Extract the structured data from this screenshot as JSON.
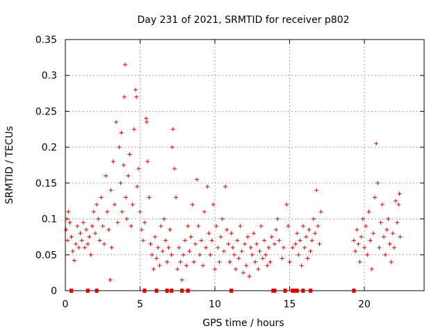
{
  "chart_data": {
    "type": "scatter",
    "title": "Day 231 of 2021, SRMTID for receiver p802",
    "xlabel": "GPS time / hours",
    "ylabel": "SRMTID / TECUs",
    "xlim": [
      0,
      24
    ],
    "ylim": [
      0,
      0.35
    ],
    "grid": true,
    "marker": "+",
    "color": "#e00000",
    "x_ticks": [
      {
        "v": 0,
        "label": "0"
      },
      {
        "v": 5,
        "label": "5"
      },
      {
        "v": 10,
        "label": "10"
      },
      {
        "v": 15,
        "label": "15"
      },
      {
        "v": 20,
        "label": "20"
      }
    ],
    "y_ticks": [
      {
        "v": 0,
        "label": "0"
      },
      {
        "v": 0.05,
        "label": "0.05"
      },
      {
        "v": 0.1,
        "label": "0.1"
      },
      {
        "v": 0.15,
        "label": "0.15"
      },
      {
        "v": 0.2,
        "label": "0.2"
      },
      {
        "v": 0.25,
        "label": "0.25"
      },
      {
        "v": 0.3,
        "label": "0.3"
      },
      {
        "v": 0.35,
        "label": "0.35"
      }
    ],
    "series": [
      {
        "name": "SRMTID",
        "points": [
          [
            0.05,
            0.085
          ],
          [
            0.1,
            0.1
          ],
          [
            0.15,
            0.07
          ],
          [
            0.2,
            0.11
          ],
          [
            0.3,
            0.095
          ],
          [
            0.4,
            0.075
          ],
          [
            0.5,
            0.055
          ],
          [
            0.6,
            0.042
          ],
          [
            0.7,
            0.065
          ],
          [
            0.8,
            0.09
          ],
          [
            0.9,
            0.06
          ],
          [
            1.0,
            0.08
          ],
          [
            1.1,
            0.07
          ],
          [
            1.2,
            0.095
          ],
          [
            1.3,
            0.06
          ],
          [
            1.4,
            0.085
          ],
          [
            1.5,
            0.065
          ],
          [
            1.6,
            0.075
          ],
          [
            1.7,
            0.05
          ],
          [
            1.8,
            0.09
          ],
          [
            1.9,
            0.11
          ],
          [
            2.0,
            0.08
          ],
          [
            2.1,
            0.12
          ],
          [
            2.2,
            0.1
          ],
          [
            2.3,
            0.07
          ],
          [
            2.4,
            0.13
          ],
          [
            2.5,
            0.09
          ],
          [
            2.6,
            0.065
          ],
          [
            2.7,
            0.16
          ],
          [
            2.8,
            0.11
          ],
          [
            2.9,
            0.085
          ],
          [
            3.0,
            0.015
          ],
          [
            3.05,
            0.14
          ],
          [
            3.1,
            0.06
          ],
          [
            3.2,
            0.18
          ],
          [
            3.3,
            0.12
          ],
          [
            3.4,
            0.235
          ],
          [
            3.5,
            0.095
          ],
          [
            3.6,
            0.2
          ],
          [
            3.7,
            0.15
          ],
          [
            3.75,
            0.22
          ],
          [
            3.8,
            0.11
          ],
          [
            3.9,
            0.175
          ],
          [
            3.95,
            0.27
          ],
          [
            4.0,
            0.315
          ],
          [
            4.05,
            0.13
          ],
          [
            4.1,
            0.1
          ],
          [
            4.2,
            0.16
          ],
          [
            4.3,
            0.19
          ],
          [
            4.4,
            0.09
          ],
          [
            4.5,
            0.12
          ],
          [
            4.6,
            0.225
          ],
          [
            4.7,
            0.28
          ],
          [
            4.75,
            0.27
          ],
          [
            4.8,
            0.145
          ],
          [
            4.9,
            0.17
          ],
          [
            5.0,
            0.11
          ],
          [
            5.1,
            0.085
          ],
          [
            5.2,
            0.07
          ],
          [
            5.3,
            0.095
          ],
          [
            5.4,
            0.24
          ],
          [
            5.45,
            0.235
          ],
          [
            5.5,
            0.18
          ],
          [
            5.6,
            0.13
          ],
          [
            5.7,
            0.065
          ],
          [
            5.8,
            0.05
          ],
          [
            5.9,
            0.03
          ],
          [
            6.0,
            0.075
          ],
          [
            6.1,
            0.045
          ],
          [
            6.2,
            0.06
          ],
          [
            6.3,
            0.035
          ],
          [
            6.4,
            0.09
          ],
          [
            6.5,
            0.055
          ],
          [
            6.6,
            0.1
          ],
          [
            6.7,
            0.07
          ],
          [
            6.8,
            0.04
          ],
          [
            6.9,
            0.06
          ],
          [
            7.0,
            0.085
          ],
          [
            7.1,
            0.05
          ],
          [
            7.15,
            0.2
          ],
          [
            7.2,
            0.225
          ],
          [
            7.3,
            0.17
          ],
          [
            7.4,
            0.13
          ],
          [
            7.5,
            0.03
          ],
          [
            7.6,
            0.06
          ],
          [
            7.7,
            0.04
          ],
          [
            7.8,
            0.015
          ],
          [
            7.9,
            0.05
          ],
          [
            8.0,
            0.07
          ],
          [
            8.1,
            0.035
          ],
          [
            8.2,
            0.09
          ],
          [
            8.3,
            0.055
          ],
          [
            8.4,
            0.075
          ],
          [
            8.5,
            0.12
          ],
          [
            8.6,
            0.04
          ],
          [
            8.7,
            0.065
          ],
          [
            8.8,
            0.155
          ],
          [
            8.9,
            0.09
          ],
          [
            9.0,
            0.05
          ],
          [
            9.1,
            0.07
          ],
          [
            9.2,
            0.035
          ],
          [
            9.3,
            0.11
          ],
          [
            9.4,
            0.06
          ],
          [
            9.5,
            0.145
          ],
          [
            9.6,
            0.08
          ],
          [
            9.7,
            0.05
          ],
          [
            9.8,
            0.07
          ],
          [
            9.9,
            0.12
          ],
          [
            10.0,
            0.03
          ],
          [
            10.1,
            0.09
          ],
          [
            10.2,
            0.06
          ],
          [
            10.3,
            0.04
          ],
          [
            10.4,
            0.075
          ],
          [
            10.5,
            0.1
          ],
          [
            10.6,
            0.055
          ],
          [
            10.7,
            0.145
          ],
          [
            10.8,
            0.085
          ],
          [
            10.9,
            0.065
          ],
          [
            11.0,
            0.04
          ],
          [
            11.1,
            0.08
          ],
          [
            11.2,
            0.06
          ],
          [
            11.3,
            0.05
          ],
          [
            11.4,
            0.03
          ],
          [
            11.5,
            0.07
          ],
          [
            11.6,
            0.045
          ],
          [
            11.7,
            0.09
          ],
          [
            11.8,
            0.055
          ],
          [
            11.9,
            0.025
          ],
          [
            12.0,
            0.065
          ],
          [
            12.1,
            0.035
          ],
          [
            12.2,
            0.075
          ],
          [
            12.3,
            0.02
          ],
          [
            12.4,
            0.06
          ],
          [
            12.5,
            0.05
          ],
          [
            12.6,
            0.08
          ],
          [
            12.7,
            0.04
          ],
          [
            12.8,
            0.065
          ],
          [
            12.9,
            0.03
          ],
          [
            13.0,
            0.055
          ],
          [
            13.1,
            0.09
          ],
          [
            13.2,
            0.045
          ],
          [
            13.3,
            0.07
          ],
          [
            13.4,
            0.05
          ],
          [
            13.5,
            0.035
          ],
          [
            13.6,
            0.06
          ],
          [
            13.7,
            0.04
          ],
          [
            13.8,
            0.075
          ],
          [
            14.0,
            0.065
          ],
          [
            14.1,
            0.085
          ],
          [
            14.2,
            0.1
          ],
          [
            14.3,
            0.07
          ],
          [
            14.5,
            0.045
          ],
          [
            14.6,
            0.06
          ],
          [
            14.8,
            0.12
          ],
          [
            14.9,
            0.09
          ],
          [
            15.0,
            0.04
          ],
          [
            15.2,
            0.06
          ],
          [
            15.4,
            0.065
          ],
          [
            15.5,
            0.08
          ],
          [
            15.6,
            0.05
          ],
          [
            15.7,
            0.07
          ],
          [
            15.8,
            0.035
          ],
          [
            15.9,
            0.09
          ],
          [
            16.0,
            0.06
          ],
          [
            16.1,
            0.075
          ],
          [
            16.2,
            0.045
          ],
          [
            16.3,
            0.085
          ],
          [
            16.4,
            0.055
          ],
          [
            16.5,
            0.07
          ],
          [
            16.6,
            0.1
          ],
          [
            16.7,
            0.08
          ],
          [
            16.8,
            0.14
          ],
          [
            16.9,
            0.09
          ],
          [
            17.0,
            0.065
          ],
          [
            17.1,
            0.11
          ],
          [
            19.3,
            0.07
          ],
          [
            19.4,
            0.055
          ],
          [
            19.5,
            0.085
          ],
          [
            19.6,
            0.065
          ],
          [
            19.7,
            0.04
          ],
          [
            19.8,
            0.075
          ],
          [
            19.9,
            0.1
          ],
          [
            20.0,
            0.06
          ],
          [
            20.1,
            0.09
          ],
          [
            20.2,
            0.05
          ],
          [
            20.3,
            0.11
          ],
          [
            20.4,
            0.07
          ],
          [
            20.5,
            0.03
          ],
          [
            20.6,
            0.08
          ],
          [
            20.7,
            0.13
          ],
          [
            20.8,
            0.205
          ],
          [
            20.9,
            0.15
          ],
          [
            21.0,
            0.06
          ],
          [
            21.1,
            0.095
          ],
          [
            21.2,
            0.12
          ],
          [
            21.3,
            0.075
          ],
          [
            21.4,
            0.05
          ],
          [
            21.5,
            0.085
          ],
          [
            21.6,
            0.1
          ],
          [
            21.7,
            0.065
          ],
          [
            21.8,
            0.04
          ],
          [
            21.9,
            0.08
          ],
          [
            22.0,
            0.06
          ],
          [
            22.1,
            0.125
          ],
          [
            22.2,
            0.095
          ],
          [
            22.3,
            0.12
          ],
          [
            22.35,
            0.135
          ],
          [
            22.4,
            0.075
          ]
        ]
      }
    ],
    "flags_at_zero": [
      0.4,
      1.5,
      2.1,
      5.3,
      6.1,
      6.8,
      7.1,
      7.8,
      8.2,
      11.1,
      13.9,
      14.0,
      14.7,
      15.2,
      15.4,
      15.5,
      15.9,
      16.4,
      19.3
    ]
  }
}
